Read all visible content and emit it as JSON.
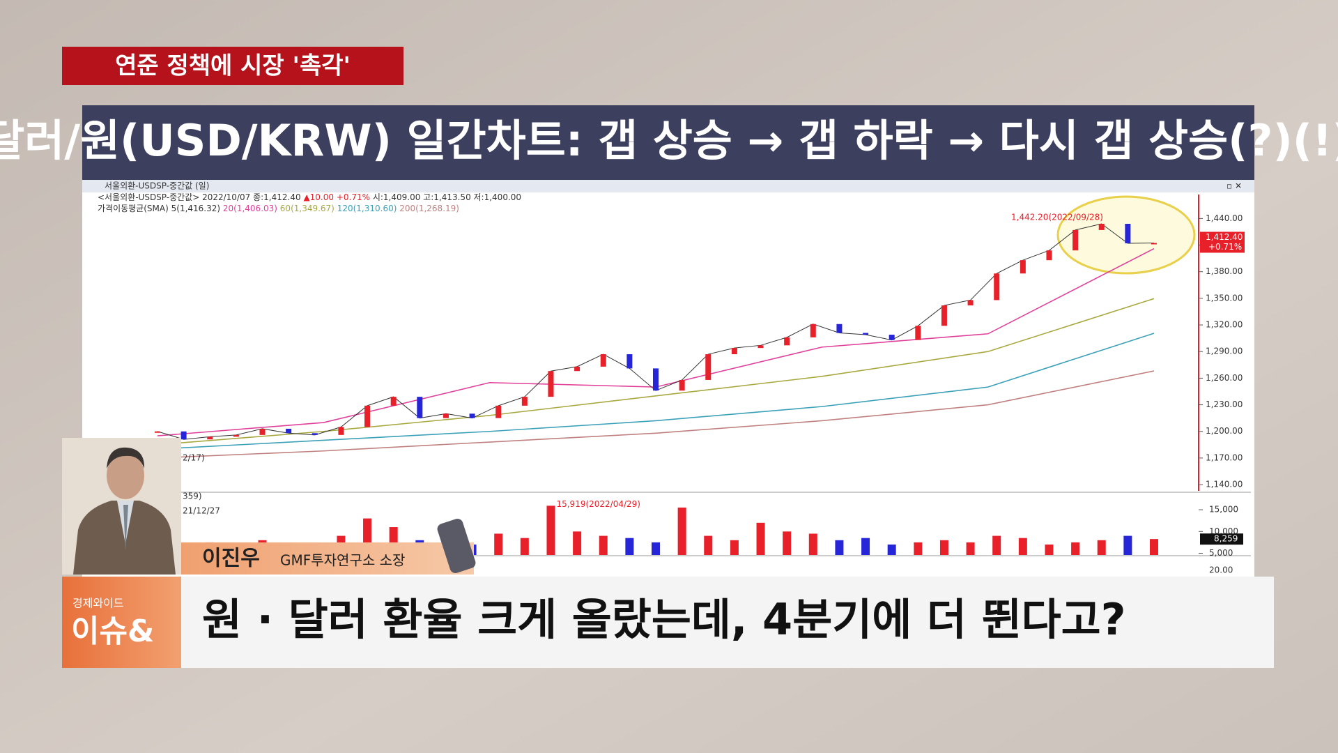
{
  "banner": {
    "tag": "연준 정책에 시장 '촉각'",
    "title": "달러/원(USD/KRW) 일간차트: 갭 상승 → 갭 하락 → 다시 갭 상승(?)(!)"
  },
  "chart_data": {
    "type": "candlestick",
    "window_title": "서울외환-USDSP-중간값 (일)",
    "info_prefix": "<서울외환-USDSP-중간값> 2022/10/07 종:1,412.40",
    "info_change": "▲10.00 +0.71%",
    "info_rest": "시:1,409.00 고:1,413.50 저:1,400.00",
    "sma_title": "가격이동평균(SMA)",
    "sma_5_label": "5(1,416.32)",
    "values": [
      1200,
      1191,
      1194,
      1196,
      1203,
      1198,
      1196,
      1205,
      1229,
      1239,
      1215,
      1220,
      1215,
      1229,
      1239,
      1268,
      1273,
      1287,
      1271,
      1246,
      1258,
      1287,
      1294,
      1297,
      1306,
      1321,
      1311,
      1309,
      1303,
      1319,
      1342,
      1348,
      1378,
      1393,
      1404,
      1427,
      1434,
      1412,
      1412.4
    ],
    "up_color": "#e8202a",
    "down_color": "#2626d8",
    "ylim": [
      1133,
      1467
    ],
    "yticks": [
      {
        "value": 1140,
        "label": "1,140.00"
      },
      {
        "value": 1170,
        "label": "1,170.00"
      },
      {
        "value": 1200,
        "label": "1,200.00"
      },
      {
        "value": 1230,
        "label": "1,230.00"
      },
      {
        "value": 1260,
        "label": "1,260.00"
      },
      {
        "value": 1290,
        "label": "1,290.00"
      },
      {
        "value": 1320,
        "label": "1,320.00"
      },
      {
        "value": 1350,
        "label": "1,350.00"
      },
      {
        "value": 1380,
        "label": "1,380.00"
      },
      {
        "value": 1410,
        "label": "1,410.00"
      },
      {
        "value": 1440,
        "label": "1,440.00"
      }
    ],
    "high_annotation": "1,442.20(2022/09/28)",
    "start_annotation": "2/17)",
    "last_price_label": "1,412.40",
    "last_change_label": "+0.71%",
    "series": [
      {
        "name": "20(1,406.03)",
        "color": "#e0409a",
        "values": [
          1195,
          1210,
          1255,
          1250,
          1295,
          1310,
          1406.03
        ]
      },
      {
        "name": "60(1,349.67)",
        "color": "#a8a840",
        "values": [
          1185,
          1200,
          1218,
          1240,
          1262,
          1290,
          1349.67
        ]
      },
      {
        "name": "120(1,310.60)",
        "color": "#3aa0b8",
        "values": [
          1180,
          1190,
          1200,
          1212,
          1228,
          1250,
          1310.6
        ]
      },
      {
        "name": "200(1,268.19)",
        "color": "#c08080",
        "values": [
          1170,
          1178,
          1188,
          1198,
          1212,
          1230,
          1268.19
        ]
      }
    ],
    "volume": {
      "values": [
        7000,
        6500,
        7500,
        6000,
        8000,
        7000,
        6500,
        9000,
        13000,
        11000,
        8000,
        7500,
        7000,
        9500,
        8500,
        15919,
        10000,
        9000,
        8500,
        7500,
        15500,
        9000,
        8000,
        12000,
        10000,
        9500,
        8000,
        8500,
        7000,
        7500,
        8000,
        7500,
        9000,
        8500,
        7000,
        7500,
        8000,
        9000,
        8259
      ],
      "ylim": [
        4600,
        18700
      ],
      "yticks": [
        {
          "value": 5000,
          "label": "5,000"
        },
        {
          "value": 10000,
          "label": "10,000"
        },
        {
          "value": 15000,
          "label": "15,000"
        }
      ],
      "peak_annotation": "15,919(2022/04/29)",
      "start_annotation": "21/12/27",
      "panel_label": "359)",
      "last_label": "8,259"
    },
    "lower_panel_label": "20.00"
  },
  "guest": {
    "name": "이진우",
    "role": "GMF투자연구소 소장"
  },
  "lower_third": {
    "logo_top": "경제와이드",
    "logo_main": "이슈&",
    "headline": "원 · 달러 환율 크게 올랐는데, 4분기에 더 뛴다고?"
  }
}
